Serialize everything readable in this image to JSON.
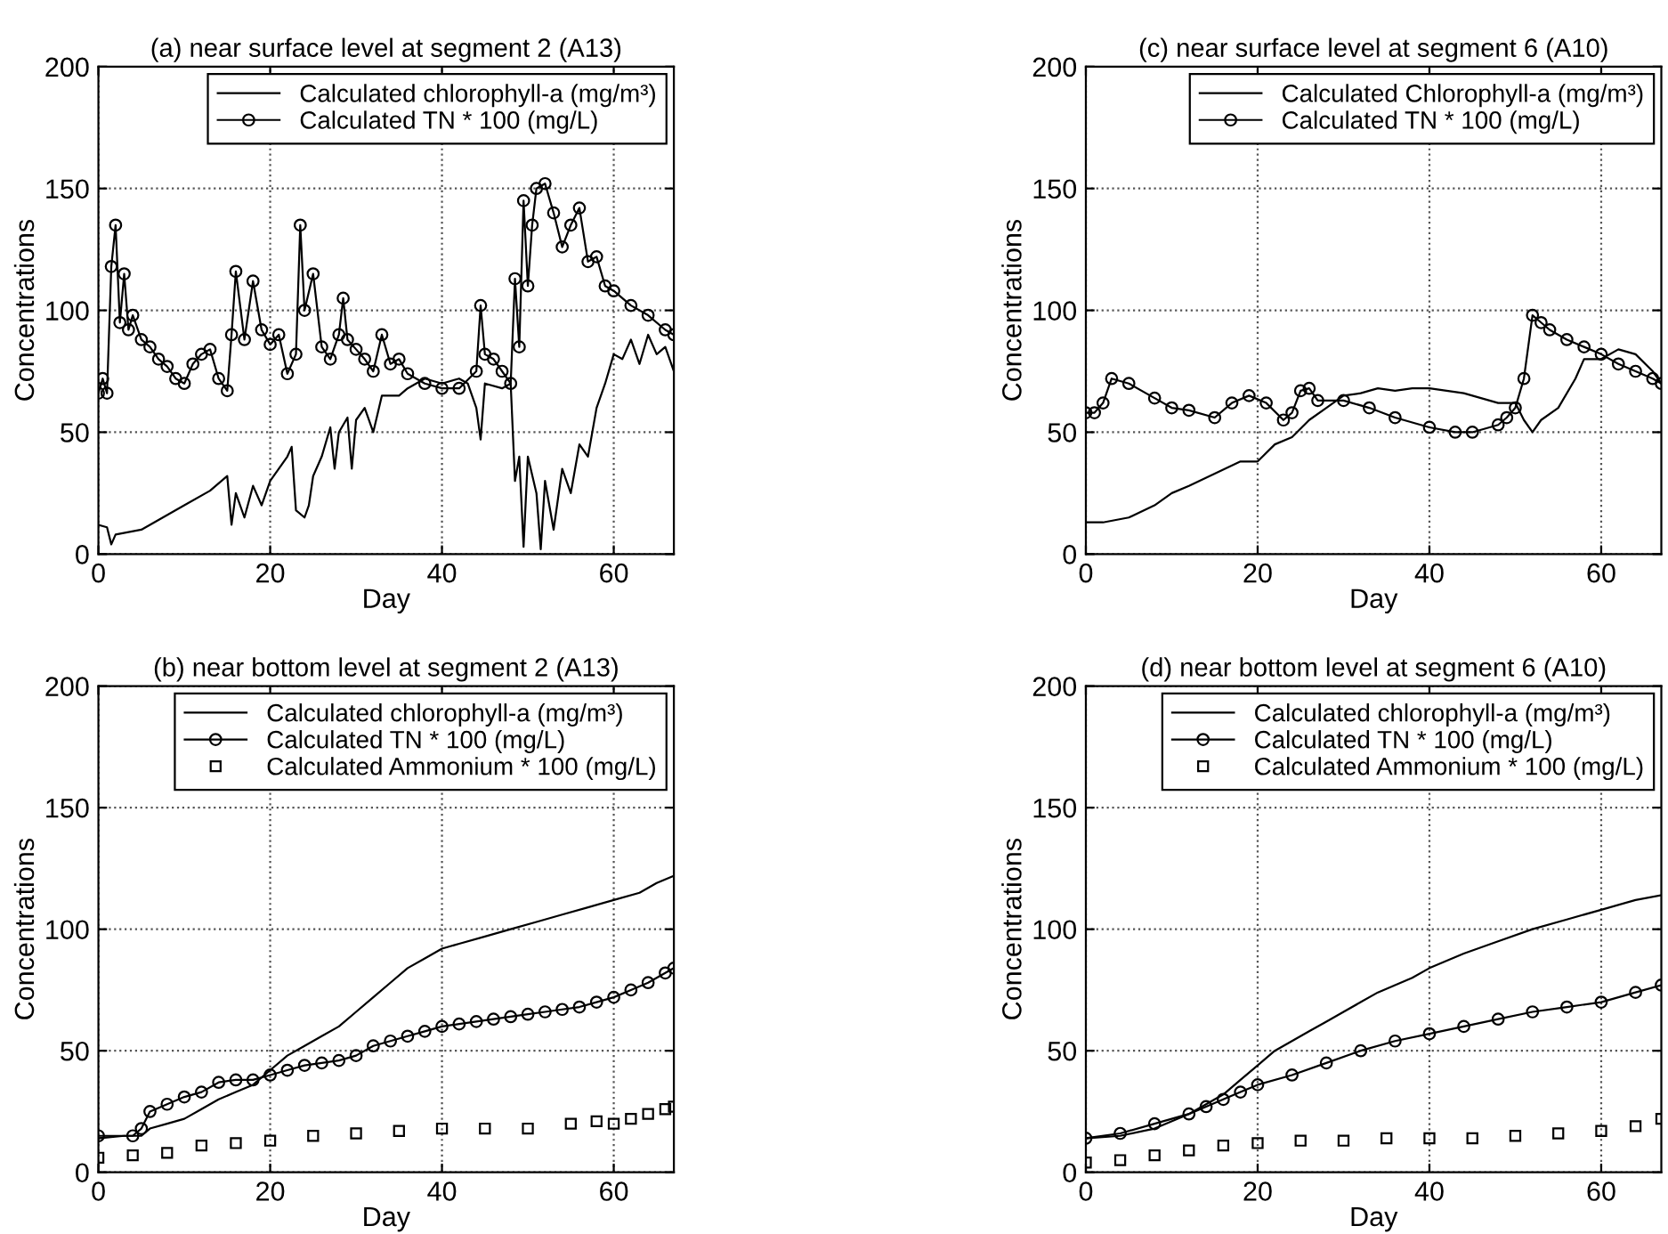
{
  "chart_data": [
    {
      "type": "line",
      "title": "(a) near surface level at segment 2 (A13)",
      "xlabel": "Day",
      "ylabel": "Concentrations",
      "xlim": [
        0,
        67
      ],
      "xticks": [
        0,
        20,
        40,
        60
      ],
      "ylim": [
        0,
        200
      ],
      "yticks": [
        0,
        50,
        100,
        150,
        200
      ],
      "grid": true,
      "legend": "top right",
      "series": [
        {
          "name": "Calculated chlorophyll-a (mg/m³)",
          "color": "#000000",
          "marker": "none",
          "line_style": "solid",
          "x": [
            0,
            1,
            1.5,
            2,
            5,
            8,
            10,
            13,
            15,
            15.5,
            16,
            17,
            18,
            19,
            20,
            22,
            22.5,
            23,
            24,
            24.5,
            25,
            26,
            27,
            27.5,
            28,
            29,
            29.5,
            30,
            31,
            32,
            33,
            35,
            36,
            38,
            40,
            42,
            43,
            44,
            44.5,
            45,
            47,
            48,
            48.5,
            49,
            49.5,
            50,
            51,
            51.5,
            52,
            53,
            54,
            55,
            56,
            57,
            58,
            59,
            60,
            61,
            62,
            63,
            64,
            65,
            66,
            67
          ],
          "values": [
            12,
            11,
            4,
            8,
            10,
            16,
            20,
            26,
            32,
            12,
            25,
            15,
            28,
            20,
            30,
            40,
            44,
            18,
            15,
            20,
            32,
            40,
            52,
            35,
            50,
            56,
            35,
            55,
            60,
            50,
            65,
            65,
            68,
            72,
            70,
            72,
            70,
            60,
            47,
            70,
            68,
            70,
            30,
            40,
            3,
            40,
            25,
            2,
            30,
            10,
            35,
            25,
            45,
            40,
            60,
            70,
            82,
            80,
            88,
            78,
            90,
            82,
            85,
            75
          ]
        },
        {
          "name": "Calculated TN * 100 (mg/L)",
          "color": "#000000",
          "marker": "circle",
          "line_style": "solid",
          "x": [
            0,
            0.5,
            1,
            1.5,
            2,
            2.5,
            3,
            3.5,
            4,
            5,
            6,
            7,
            8,
            9,
            10,
            11,
            12,
            13,
            14,
            15,
            15.5,
            16,
            17,
            18,
            19,
            20,
            21,
            22,
            23,
            23.5,
            24,
            25,
            26,
            27,
            28,
            28.5,
            29,
            30,
            31,
            32,
            33,
            34,
            35,
            36,
            38,
            40,
            42,
            44,
            44.5,
            45,
            46,
            47,
            48,
            48.5,
            49,
            49.5,
            50,
            50.5,
            51,
            52,
            53,
            54,
            55,
            56,
            57,
            58,
            59,
            60,
            62,
            64,
            66,
            67
          ],
          "values": [
            66,
            72,
            66,
            118,
            135,
            95,
            115,
            92,
            98,
            88,
            85,
            80,
            77,
            72,
            70,
            78,
            82,
            84,
            72,
            67,
            90,
            116,
            88,
            112,
            92,
            86,
            90,
            74,
            82,
            135,
            100,
            115,
            85,
            80,
            90,
            105,
            88,
            84,
            80,
            75,
            90,
            78,
            80,
            74,
            70,
            68,
            68,
            75,
            102,
            82,
            80,
            75,
            70,
            113,
            85,
            145,
            110,
            135,
            150,
            152,
            140,
            126,
            135,
            142,
            120,
            122,
            110,
            108,
            102,
            98,
            92,
            90
          ]
        }
      ]
    },
    {
      "type": "line",
      "title": "(c) near surface level at segment 6 (A10)",
      "xlabel": "Day",
      "ylabel": "Concentrations",
      "xlim": [
        0,
        67
      ],
      "xticks": [
        0,
        20,
        40,
        60
      ],
      "ylim": [
        0,
        200
      ],
      "yticks": [
        0,
        50,
        100,
        150,
        200
      ],
      "grid": true,
      "legend": "top right",
      "series": [
        {
          "name": "Calculated Chlorophyll-a (mg/m³)",
          "color": "#000000",
          "marker": "none",
          "line_style": "solid",
          "x": [
            0,
            2,
            5,
            8,
            10,
            12,
            15,
            18,
            20,
            22,
            24,
            26,
            28,
            30,
            32,
            34,
            36,
            38,
            40,
            44,
            48,
            50,
            51,
            52,
            53,
            55,
            57,
            58,
            60,
            62,
            64,
            66,
            67
          ],
          "values": [
            13,
            13,
            15,
            20,
            25,
            28,
            33,
            38,
            38,
            45,
            48,
            55,
            60,
            65,
            66,
            68,
            67,
            68,
            68,
            66,
            62,
            62,
            55,
            50,
            55,
            60,
            72,
            80,
            80,
            84,
            82,
            75,
            70
          ]
        },
        {
          "name": "Calculated TN * 100 (mg/L)",
          "color": "#000000",
          "marker": "circle",
          "line_style": "solid",
          "x": [
            0,
            1,
            2,
            3,
            5,
            8,
            10,
            12,
            15,
            17,
            19,
            21,
            23,
            24,
            25,
            26,
            27,
            30,
            33,
            36,
            40,
            43,
            45,
            48,
            49,
            50,
            51,
            52,
            53,
            54,
            56,
            58,
            60,
            62,
            64,
            66,
            67
          ],
          "values": [
            58,
            58,
            62,
            72,
            70,
            64,
            60,
            59,
            56,
            62,
            65,
            62,
            55,
            58,
            67,
            68,
            63,
            63,
            60,
            56,
            52,
            50,
            50,
            53,
            56,
            60,
            72,
            98,
            95,
            92,
            88,
            85,
            82,
            78,
            75,
            72,
            70
          ]
        }
      ]
    },
    {
      "type": "line",
      "title": "(b) near bottom level at segment 2 (A13)",
      "xlabel": "Day",
      "ylabel": "Concentrations",
      "xlim": [
        0,
        67
      ],
      "xticks": [
        0,
        20,
        40,
        60
      ],
      "ylim": [
        0,
        200
      ],
      "yticks": [
        0,
        50,
        100,
        150,
        200
      ],
      "grid": true,
      "legend": "top right",
      "series": [
        {
          "name": "Calculated chlorophyll-a (mg/m³)",
          "color": "#000000",
          "marker": "none",
          "line_style": "solid",
          "x": [
            0,
            3,
            5,
            6,
            8,
            10,
            12,
            14,
            16,
            18,
            20,
            22,
            24,
            26,
            28,
            30,
            32,
            34,
            36,
            38,
            40,
            42,
            45,
            48,
            51,
            54,
            57,
            60,
            63,
            65,
            67
          ],
          "values": [
            14,
            15,
            15,
            18,
            20,
            22,
            26,
            30,
            33,
            36,
            42,
            48,
            52,
            56,
            60,
            66,
            72,
            78,
            84,
            88,
            92,
            94,
            97,
            100,
            103,
            106,
            109,
            112,
            115,
            119,
            122
          ]
        },
        {
          "name": "Calculated TN * 100 (mg/L)",
          "color": "#000000",
          "marker": "circle",
          "line_style": "solid",
          "x": [
            0,
            4,
            5,
            6,
            8,
            10,
            12,
            14,
            16,
            18,
            20,
            22,
            24,
            26,
            28,
            30,
            32,
            34,
            36,
            38,
            40,
            42,
            44,
            46,
            48,
            50,
            52,
            54,
            56,
            58,
            60,
            62,
            64,
            66,
            67
          ],
          "values": [
            15,
            15,
            18,
            25,
            28,
            31,
            33,
            37,
            38,
            38,
            40,
            42,
            44,
            45,
            46,
            48,
            52,
            54,
            56,
            58,
            60,
            61,
            62,
            63,
            64,
            65,
            66,
            67,
            68,
            70,
            72,
            75,
            78,
            82,
            84
          ]
        },
        {
          "name": "Calculated Ammonium * 100 (mg/L)",
          "type": "scatter",
          "color": "#000000",
          "marker": "square",
          "x": [
            0,
            4,
            8,
            12,
            16,
            20,
            25,
            30,
            35,
            40,
            45,
            50,
            55,
            58,
            60,
            62,
            64,
            66,
            67
          ],
          "values": [
            6,
            7,
            8,
            11,
            12,
            13,
            15,
            16,
            17,
            18,
            18,
            18,
            20,
            21,
            20,
            22,
            24,
            26,
            27
          ]
        }
      ]
    },
    {
      "type": "line",
      "title": "(d) near bottom level at segment 6 (A10)",
      "xlabel": "Day",
      "ylabel": "Concentrations",
      "xlim": [
        0,
        67
      ],
      "xticks": [
        0,
        20,
        40,
        60
      ],
      "ylim": [
        0,
        200
      ],
      "yticks": [
        0,
        50,
        100,
        150,
        200
      ],
      "grid": true,
      "legend": "top right",
      "series": [
        {
          "name": "Calculated chlorophyll-a (mg/m³)",
          "color": "#000000",
          "marker": "none",
          "line_style": "solid",
          "x": [
            0,
            4,
            8,
            12,
            16,
            18,
            20,
            22,
            24,
            26,
            28,
            30,
            32,
            34,
            36,
            38,
            40,
            44,
            48,
            52,
            56,
            60,
            64,
            67
          ],
          "values": [
            14,
            15,
            18,
            24,
            32,
            38,
            44,
            50,
            54,
            58,
            62,
            66,
            70,
            74,
            77,
            80,
            84,
            90,
            95,
            100,
            104,
            108,
            112,
            114
          ]
        },
        {
          "name": "Calculated TN * 100 (mg/L)",
          "color": "#000000",
          "marker": "circle",
          "line_style": "solid",
          "x": [
            0,
            4,
            8,
            12,
            14,
            16,
            18,
            20,
            24,
            28,
            32,
            36,
            40,
            44,
            48,
            52,
            56,
            60,
            64,
            67
          ],
          "values": [
            14,
            16,
            20,
            24,
            27,
            30,
            33,
            36,
            40,
            45,
            50,
            54,
            57,
            60,
            63,
            66,
            68,
            70,
            74,
            77
          ]
        },
        {
          "name": "Calculated Ammonium * 100 (mg/L)",
          "type": "scatter",
          "color": "#000000",
          "marker": "square",
          "x": [
            0,
            4,
            8,
            12,
            16,
            20,
            25,
            30,
            35,
            40,
            45,
            50,
            55,
            60,
            64,
            67
          ],
          "values": [
            4,
            5,
            7,
            9,
            11,
            12,
            13,
            13,
            14,
            14,
            14,
            15,
            16,
            17,
            19,
            22
          ]
        }
      ]
    }
  ]
}
